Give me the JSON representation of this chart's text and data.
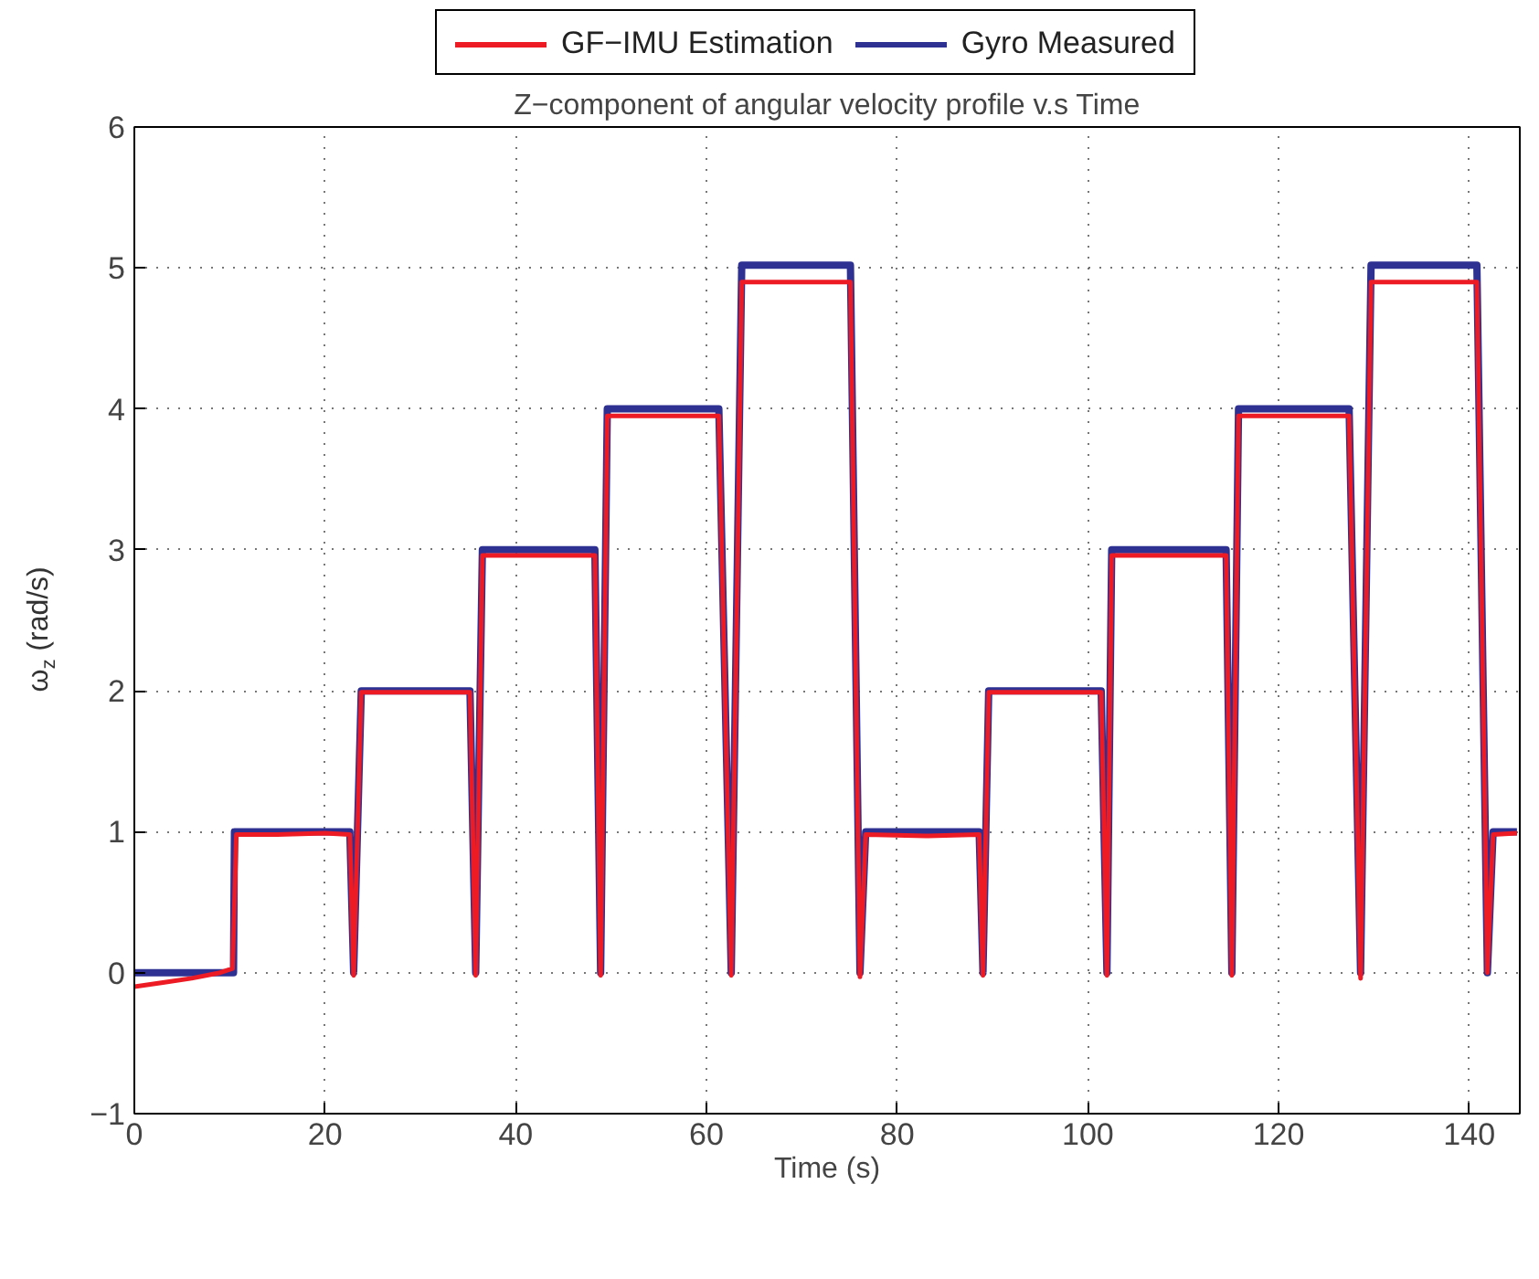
{
  "chart_data": {
    "type": "line",
    "title": "Z−component of angular velocity profile v.s Time",
    "xlabel": "Time (s)",
    "ylabel": "ω$_{z}$ (rad/s)",
    "xlim": [
      0,
      145.3
    ],
    "ylim": [
      -1,
      6
    ],
    "xticks": [
      0,
      20,
      40,
      60,
      80,
      100,
      120,
      140
    ],
    "yticks": [
      -1,
      0,
      1,
      2,
      3,
      4,
      5,
      6
    ],
    "grid": true,
    "legend": "top",
    "line_style": "solid",
    "series": [
      {
        "name": "GF−IMU Estimation",
        "color": "#ed1c24",
        "x": [
          0,
          3,
          6,
          9,
          10.3,
          10.5,
          10.7,
          15,
          20,
          22.6,
          23.0,
          23.8,
          30,
          35.2,
          35.8,
          36.5,
          42,
          48.3,
          48.9,
          49.6,
          55,
          61.3,
          62.6,
          63.7,
          70,
          75.1,
          76.1,
          76.7,
          83,
          88.6,
          89.0,
          89.6,
          95,
          101.4,
          102.0,
          102.5,
          108,
          114.5,
          115.1,
          115.8,
          122,
          127.4,
          128.6,
          129.7,
          135,
          140.8,
          141.9,
          142.5,
          145
        ],
        "values": [
          -0.1,
          -0.07,
          -0.04,
          0,
          0.03,
          0.5,
          0.98,
          0.98,
          0.99,
          0.98,
          -0.02,
          1.99,
          1.99,
          1.99,
          -0.02,
          2.96,
          2.96,
          2.96,
          -0.02,
          3.95,
          3.95,
          3.95,
          -0.02,
          4.9,
          4.9,
          4.9,
          -0.03,
          0.98,
          0.97,
          0.98,
          -0.02,
          1.99,
          1.99,
          1.99,
          -0.02,
          2.96,
          2.96,
          2.96,
          -0.02,
          3.95,
          3.95,
          3.95,
          -0.04,
          4.9,
          4.9,
          4.9,
          0.0,
          0.98,
          0.99
        ]
      },
      {
        "name": "Gyro Measured",
        "color": "#2e3192",
        "x": [
          0,
          10.4,
          10.5,
          22.6,
          23.0,
          23.8,
          35.2,
          35.8,
          36.5,
          48.3,
          48.9,
          49.6,
          61.3,
          62.6,
          63.7,
          75.1,
          76.1,
          76.7,
          88.6,
          89.0,
          89.6,
          101.4,
          102.0,
          102.5,
          114.5,
          115.1,
          115.8,
          127.4,
          128.6,
          129.7,
          140.8,
          141.9,
          142.5,
          145
        ],
        "values": [
          0,
          0,
          1,
          1,
          0,
          2,
          2,
          0,
          3,
          3,
          0,
          4,
          4,
          0,
          5.02,
          5.02,
          0,
          1,
          1,
          0,
          2,
          2,
          0,
          3,
          3,
          0,
          4,
          4,
          0,
          5.02,
          5.02,
          0,
          1,
          1
        ]
      }
    ]
  }
}
